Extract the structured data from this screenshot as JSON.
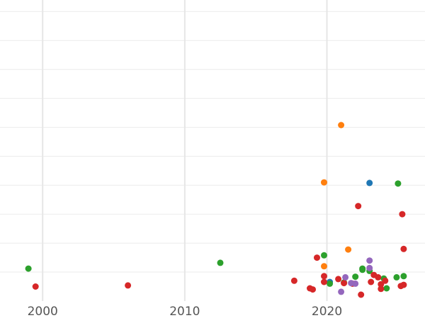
{
  "chart_data": {
    "type": "scatter",
    "title": "",
    "xlabel": "",
    "ylabel": "",
    "xlim": [
      1997.0,
      2026.9
    ],
    "ylim": [
      0,
      52
    ],
    "x_ticks": [
      2000,
      2010,
      2020
    ],
    "x_tick_labels": [
      "2000",
      "2010",
      "2020"
    ],
    "y_gridlines": [
      5,
      10,
      15,
      20,
      25,
      30,
      35,
      40,
      45,
      50
    ],
    "grid": true,
    "legend": "none",
    "series": [
      {
        "name": "series-blue",
        "color": "#1f77b4",
        "points": [
          [
            2023.0,
            20.4
          ],
          [
            2020.2,
            3.3
          ]
        ]
      },
      {
        "name": "series-orange",
        "color": "#ff7f0e",
        "points": [
          [
            2021.0,
            30.4
          ],
          [
            2019.8,
            20.5
          ],
          [
            2021.5,
            8.9
          ],
          [
            2019.8,
            6.0
          ]
        ]
      },
      {
        "name": "series-green",
        "color": "#2ca02c",
        "points": [
          [
            1999.0,
            5.6
          ],
          [
            2012.5,
            6.6
          ],
          [
            2019.8,
            7.9
          ],
          [
            2025.0,
            20.3
          ],
          [
            2020.2,
            3.0
          ],
          [
            2021.2,
            3.2
          ],
          [
            2022.0,
            4.2
          ],
          [
            2022.5,
            5.6
          ],
          [
            2022.5,
            5.4
          ],
          [
            2023.0,
            5.2
          ],
          [
            2024.0,
            3.9
          ],
          [
            2024.2,
            2.2
          ],
          [
            2024.9,
            4.1
          ],
          [
            2025.4,
            4.3
          ]
        ]
      },
      {
        "name": "series-red",
        "color": "#d62728",
        "points": [
          [
            1999.5,
            2.5
          ],
          [
            2006.0,
            2.7
          ],
          [
            2017.7,
            3.5
          ],
          [
            2018.8,
            2.2
          ],
          [
            2019.0,
            2.0
          ],
          [
            2019.3,
            7.5
          ],
          [
            2019.8,
            4.3
          ],
          [
            2019.8,
            3.3
          ],
          [
            2020.8,
            3.8
          ],
          [
            2021.2,
            3.1
          ],
          [
            2021.8,
            3.0
          ],
          [
            2022.2,
            16.4
          ],
          [
            2022.4,
            1.1
          ],
          [
            2023.1,
            3.3
          ],
          [
            2023.3,
            4.5
          ],
          [
            2023.6,
            4.1
          ],
          [
            2023.8,
            2.9
          ],
          [
            2023.8,
            2.1
          ],
          [
            2024.1,
            3.5
          ],
          [
            2025.2,
            2.6
          ],
          [
            2025.3,
            15.0
          ],
          [
            2025.4,
            9.0
          ],
          [
            2025.4,
            2.8
          ]
        ]
      },
      {
        "name": "series-purple",
        "color": "#9467bd",
        "points": [
          [
            2021.0,
            1.6
          ],
          [
            2021.3,
            4.1
          ],
          [
            2021.7,
            3.1
          ],
          [
            2022.0,
            3.0
          ],
          [
            2023.0,
            7.0
          ],
          [
            2023.0,
            5.7
          ]
        ]
      }
    ]
  }
}
